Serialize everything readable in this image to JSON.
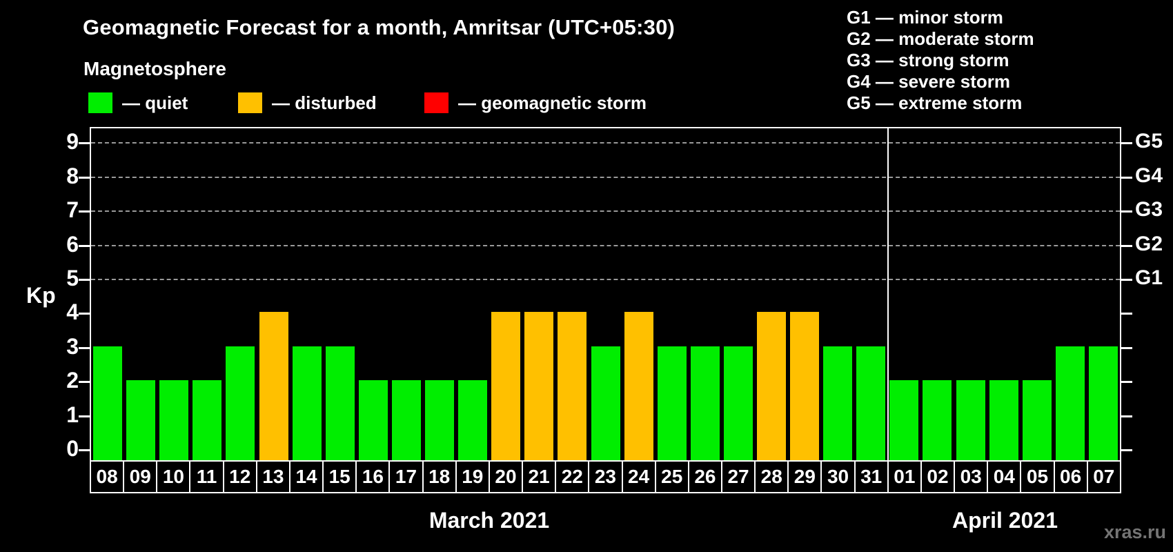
{
  "header": {
    "title": "Geomagnetic Forecast for a month, Amritsar (UTC+05:30)",
    "subtitle": "Magnetosphere"
  },
  "legend": {
    "items": [
      {
        "key": "quiet",
        "label": "— quiet",
        "color": "#00ee00"
      },
      {
        "key": "disturbed",
        "label": "— disturbed",
        "color": "#ffc000"
      },
      {
        "key": "storm",
        "label": "— geomagnetic storm",
        "color": "#ff0000"
      }
    ]
  },
  "g_legend": {
    "items": [
      "G1 — minor storm",
      "G2 — moderate storm",
      "G3 — strong storm",
      "G4 — severe storm",
      "G5 — extreme storm"
    ]
  },
  "watermark": "xras.ru",
  "chart_data": {
    "type": "bar",
    "title": "Geomagnetic Forecast for a month, Amritsar (UTC+05:30)",
    "ylabel": "Kp",
    "ylim": [
      0,
      9
    ],
    "y_ticks": [
      0,
      1,
      2,
      3,
      4,
      5,
      6,
      7,
      8,
      9
    ],
    "right_axis_labels": [
      {
        "text": "G1",
        "kp": 5
      },
      {
        "text": "G2",
        "kp": 6
      },
      {
        "text": "G3",
        "kp": 7
      },
      {
        "text": "G4",
        "kp": 8
      },
      {
        "text": "G5",
        "kp": 9
      }
    ],
    "gridlines_at_kp": [
      5,
      6,
      7,
      8,
      9
    ],
    "grid": "dashed horizontal lines at storm levels only",
    "legend_position": "top-left and top-right",
    "colors": {
      "quiet": "#00ee00",
      "disturbed": "#ffc000",
      "storm": "#ff0000"
    },
    "months": [
      {
        "label": "March 2021",
        "start_index": 0,
        "count": 24
      },
      {
        "label": "April 2021",
        "start_index": 24,
        "count": 7
      }
    ],
    "categories": [
      "08",
      "09",
      "10",
      "11",
      "12",
      "13",
      "14",
      "15",
      "16",
      "17",
      "18",
      "19",
      "20",
      "21",
      "22",
      "23",
      "24",
      "25",
      "26",
      "27",
      "28",
      "29",
      "30",
      "31",
      "01",
      "02",
      "03",
      "04",
      "05",
      "06",
      "07"
    ],
    "values": [
      3,
      2,
      2,
      2,
      3,
      4,
      3,
      3,
      2,
      2,
      2,
      2,
      4,
      4,
      4,
      3,
      4,
      3,
      3,
      3,
      4,
      4,
      3,
      3,
      2,
      2,
      2,
      2,
      2,
      3,
      3
    ],
    "states": [
      "quiet",
      "quiet",
      "quiet",
      "quiet",
      "quiet",
      "disturbed",
      "quiet",
      "quiet",
      "quiet",
      "quiet",
      "quiet",
      "quiet",
      "disturbed",
      "disturbed",
      "disturbed",
      "quiet",
      "disturbed",
      "quiet",
      "quiet",
      "quiet",
      "disturbed",
      "disturbed",
      "quiet",
      "quiet",
      "quiet",
      "quiet",
      "quiet",
      "quiet",
      "quiet",
      "quiet",
      "quiet"
    ]
  }
}
